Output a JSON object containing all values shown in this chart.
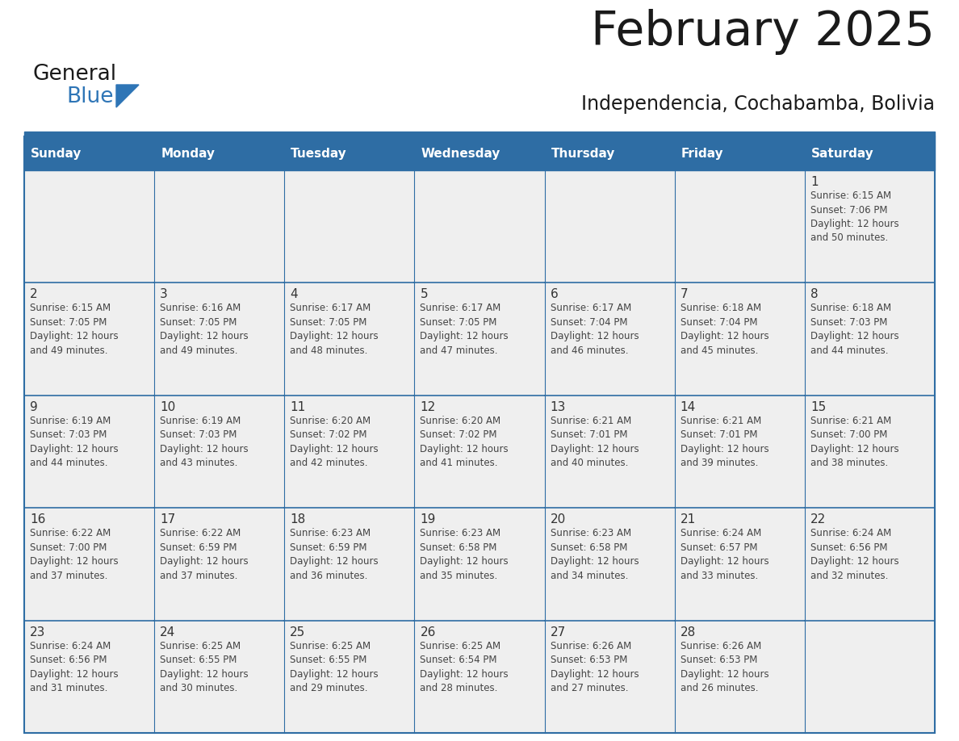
{
  "title": "February 2025",
  "subtitle": "Independencia, Cochabamba, Bolivia",
  "header_bg": "#2E6DA4",
  "header_text_color": "#FFFFFF",
  "cell_bg": "#EFEFEF",
  "day_number_color": "#333333",
  "cell_text_color": "#444444",
  "border_color": "#2E6DA4",
  "days_of_week": [
    "Sunday",
    "Monday",
    "Tuesday",
    "Wednesday",
    "Thursday",
    "Friday",
    "Saturday"
  ],
  "logo_text1": "General",
  "logo_text2": "Blue",
  "logo_color1": "#1a1a1a",
  "logo_color2": "#2E75B6",
  "calendar": [
    [
      {
        "day": null,
        "info": ""
      },
      {
        "day": null,
        "info": ""
      },
      {
        "day": null,
        "info": ""
      },
      {
        "day": null,
        "info": ""
      },
      {
        "day": null,
        "info": ""
      },
      {
        "day": null,
        "info": ""
      },
      {
        "day": 1,
        "info": "Sunrise: 6:15 AM\nSunset: 7:06 PM\nDaylight: 12 hours\nand 50 minutes."
      }
    ],
    [
      {
        "day": 2,
        "info": "Sunrise: 6:15 AM\nSunset: 7:05 PM\nDaylight: 12 hours\nand 49 minutes."
      },
      {
        "day": 3,
        "info": "Sunrise: 6:16 AM\nSunset: 7:05 PM\nDaylight: 12 hours\nand 49 minutes."
      },
      {
        "day": 4,
        "info": "Sunrise: 6:17 AM\nSunset: 7:05 PM\nDaylight: 12 hours\nand 48 minutes."
      },
      {
        "day": 5,
        "info": "Sunrise: 6:17 AM\nSunset: 7:05 PM\nDaylight: 12 hours\nand 47 minutes."
      },
      {
        "day": 6,
        "info": "Sunrise: 6:17 AM\nSunset: 7:04 PM\nDaylight: 12 hours\nand 46 minutes."
      },
      {
        "day": 7,
        "info": "Sunrise: 6:18 AM\nSunset: 7:04 PM\nDaylight: 12 hours\nand 45 minutes."
      },
      {
        "day": 8,
        "info": "Sunrise: 6:18 AM\nSunset: 7:03 PM\nDaylight: 12 hours\nand 44 minutes."
      }
    ],
    [
      {
        "day": 9,
        "info": "Sunrise: 6:19 AM\nSunset: 7:03 PM\nDaylight: 12 hours\nand 44 minutes."
      },
      {
        "day": 10,
        "info": "Sunrise: 6:19 AM\nSunset: 7:03 PM\nDaylight: 12 hours\nand 43 minutes."
      },
      {
        "day": 11,
        "info": "Sunrise: 6:20 AM\nSunset: 7:02 PM\nDaylight: 12 hours\nand 42 minutes."
      },
      {
        "day": 12,
        "info": "Sunrise: 6:20 AM\nSunset: 7:02 PM\nDaylight: 12 hours\nand 41 minutes."
      },
      {
        "day": 13,
        "info": "Sunrise: 6:21 AM\nSunset: 7:01 PM\nDaylight: 12 hours\nand 40 minutes."
      },
      {
        "day": 14,
        "info": "Sunrise: 6:21 AM\nSunset: 7:01 PM\nDaylight: 12 hours\nand 39 minutes."
      },
      {
        "day": 15,
        "info": "Sunrise: 6:21 AM\nSunset: 7:00 PM\nDaylight: 12 hours\nand 38 minutes."
      }
    ],
    [
      {
        "day": 16,
        "info": "Sunrise: 6:22 AM\nSunset: 7:00 PM\nDaylight: 12 hours\nand 37 minutes."
      },
      {
        "day": 17,
        "info": "Sunrise: 6:22 AM\nSunset: 6:59 PM\nDaylight: 12 hours\nand 37 minutes."
      },
      {
        "day": 18,
        "info": "Sunrise: 6:23 AM\nSunset: 6:59 PM\nDaylight: 12 hours\nand 36 minutes."
      },
      {
        "day": 19,
        "info": "Sunrise: 6:23 AM\nSunset: 6:58 PM\nDaylight: 12 hours\nand 35 minutes."
      },
      {
        "day": 20,
        "info": "Sunrise: 6:23 AM\nSunset: 6:58 PM\nDaylight: 12 hours\nand 34 minutes."
      },
      {
        "day": 21,
        "info": "Sunrise: 6:24 AM\nSunset: 6:57 PM\nDaylight: 12 hours\nand 33 minutes."
      },
      {
        "day": 22,
        "info": "Sunrise: 6:24 AM\nSunset: 6:56 PM\nDaylight: 12 hours\nand 32 minutes."
      }
    ],
    [
      {
        "day": 23,
        "info": "Sunrise: 6:24 AM\nSunset: 6:56 PM\nDaylight: 12 hours\nand 31 minutes."
      },
      {
        "day": 24,
        "info": "Sunrise: 6:25 AM\nSunset: 6:55 PM\nDaylight: 12 hours\nand 30 minutes."
      },
      {
        "day": 25,
        "info": "Sunrise: 6:25 AM\nSunset: 6:55 PM\nDaylight: 12 hours\nand 29 minutes."
      },
      {
        "day": 26,
        "info": "Sunrise: 6:25 AM\nSunset: 6:54 PM\nDaylight: 12 hours\nand 28 minutes."
      },
      {
        "day": 27,
        "info": "Sunrise: 6:26 AM\nSunset: 6:53 PM\nDaylight: 12 hours\nand 27 minutes."
      },
      {
        "day": 28,
        "info": "Sunrise: 6:26 AM\nSunset: 6:53 PM\nDaylight: 12 hours\nand 26 minutes."
      },
      {
        "day": null,
        "info": ""
      }
    ]
  ]
}
